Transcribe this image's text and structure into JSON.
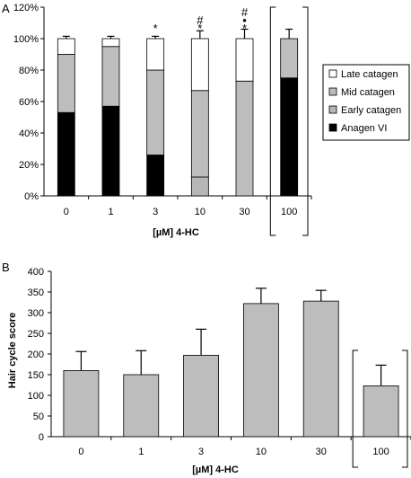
{
  "chart_data": [
    {
      "panel": "A",
      "type": "bar",
      "stacked": true,
      "categories": [
        "0",
        "1",
        "3",
        "10",
        "30",
        "100"
      ],
      "xlabel": "[µM] 4-HC",
      "ylabel": "",
      "ylim": [
        0,
        120
      ],
      "yticks": [
        "0%",
        "20%",
        "40%",
        "60%",
        "80%",
        "100%",
        "120%"
      ],
      "grid": false,
      "legend_position": "right",
      "series": [
        {
          "name": "Anagen VI",
          "color": "#000000",
          "values": [
            53,
            57,
            26,
            0,
            0,
            75
          ],
          "errors": [
            1,
            2.5,
            4,
            0,
            0,
            9
          ]
        },
        {
          "name": "Early catagen",
          "color": "#bdbdbd",
          "pattern": true,
          "values": [
            0,
            0,
            0,
            12,
            0,
            0
          ],
          "errors": [
            0,
            0,
            0,
            2.5,
            0,
            0
          ]
        },
        {
          "name": "Mid catagen",
          "color": "#bdbdbd",
          "values": [
            37,
            38,
            54,
            55,
            73,
            25
          ],
          "errors": [
            1.5,
            1.5,
            4.5,
            5.5,
            6,
            6
          ]
        },
        {
          "name": "Late catagen",
          "color": "#ffffff",
          "values": [
            10,
            5,
            20,
            33,
            27,
            0
          ],
          "errors": [
            1.5,
            1.5,
            1.5,
            5,
            6,
            0
          ]
        }
      ],
      "annotations": [
        {
          "category": "3",
          "lines": [
            "*"
          ]
        },
        {
          "category": "10",
          "lines": [
            "#",
            "*"
          ]
        },
        {
          "category": "30",
          "lines": [
            "#",
            "•",
            "*"
          ]
        }
      ],
      "bracketed_category": "100"
    },
    {
      "panel": "B",
      "type": "bar",
      "categories": [
        "0",
        "1",
        "3",
        "10",
        "30",
        "100"
      ],
      "xlabel": "[µM] 4-HC",
      "ylabel": "Hair cycle score",
      "ylim": [
        0,
        400
      ],
      "yticks": [
        "0",
        "50",
        "100",
        "150",
        "200",
        "250",
        "300",
        "350",
        "400"
      ],
      "grid": false,
      "series": [
        {
          "color": "#bdbdbd",
          "values": [
            160,
            150,
            197,
            322,
            328,
            123
          ],
          "errors": [
            46,
            58,
            63,
            37,
            26,
            50
          ]
        }
      ],
      "bracketed_category": "100"
    }
  ]
}
